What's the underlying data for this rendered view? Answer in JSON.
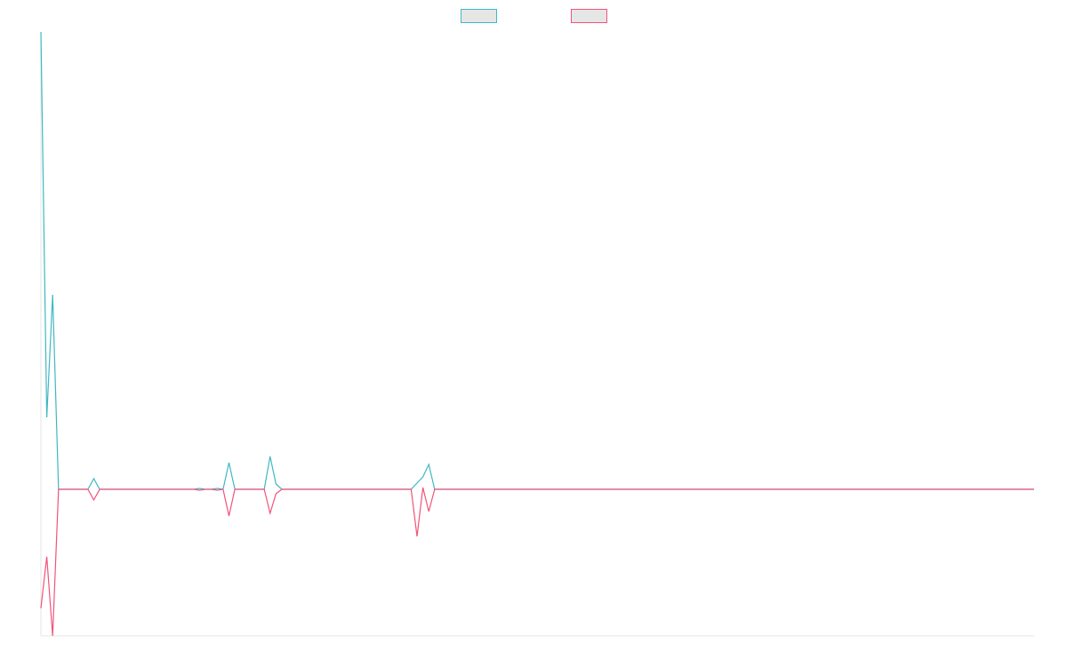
{
  "chart_data": {
    "type": "line",
    "x": [
      0,
      1,
      2,
      3,
      8,
      9,
      10,
      26,
      27,
      28,
      29,
      30,
      31,
      32,
      33,
      38,
      39,
      40,
      41,
      63,
      64,
      65,
      66,
      67,
      169
    ],
    "xlim": [
      0,
      169
    ],
    "ylim": [
      -165,
      515
    ],
    "legend": "top",
    "series": [
      {
        "color": "#3fb8c2",
        "values": [
          515,
          81,
          219,
          0,
          0,
          12,
          0,
          0,
          1,
          0,
          0,
          1,
          0,
          30,
          0,
          0,
          37,
          6,
          0,
          0,
          7,
          14,
          28,
          0,
          0
        ]
      },
      {
        "color": "#f2537a",
        "values": [
          -134,
          -76,
          -165,
          0,
          0,
          -12,
          0,
          0,
          -1,
          0,
          0,
          -1,
          0,
          -30,
          0,
          0,
          -27,
          -5,
          0,
          0,
          -53,
          2,
          -25,
          0,
          0
        ]
      }
    ]
  }
}
